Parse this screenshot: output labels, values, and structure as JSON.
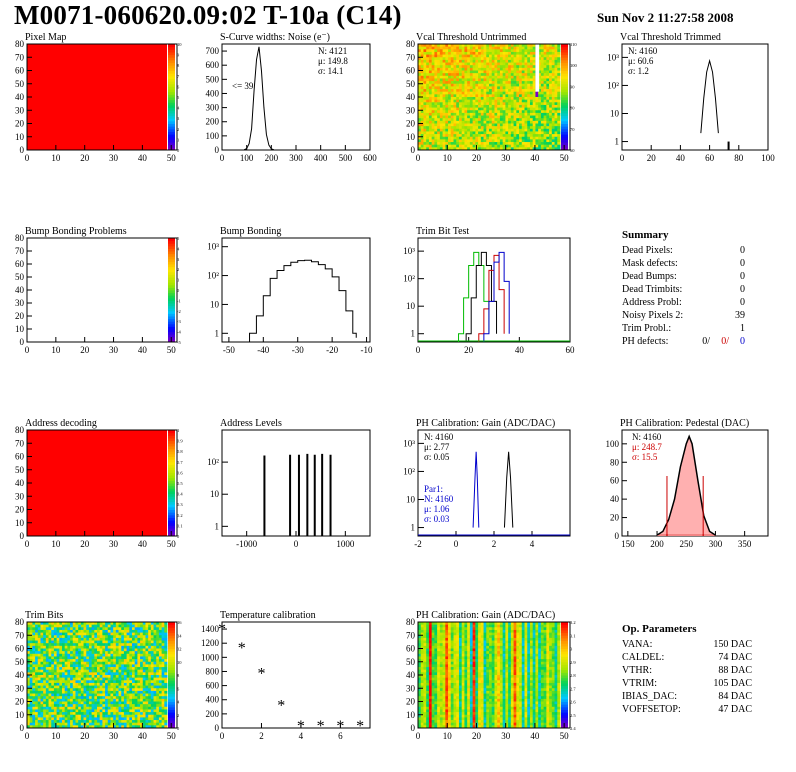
{
  "header": {
    "title": "M0071-060620.09:02 T-10a (C14)",
    "datetime": "Sun Nov  2 11:27:58 2008"
  },
  "axis_ticks": {
    "map_x": [
      "0",
      "10",
      "20",
      "30",
      "40",
      "50"
    ],
    "map_y": [
      "0",
      "10",
      "20",
      "30",
      "40",
      "50",
      "60",
      "70",
      "80"
    ],
    "log3": [
      "1",
      "10",
      "10²",
      "10³"
    ],
    "log2": [
      "1",
      "10",
      "10²"
    ],
    "scurve_x": [
      "0",
      "100",
      "200",
      "300",
      "400",
      "500",
      "600"
    ],
    "scurve_y": [
      "0",
      "100",
      "200",
      "300",
      "400",
      "500",
      "600",
      "700"
    ],
    "trimmed_x": [
      "0",
      "20",
      "40",
      "60",
      "80",
      "100"
    ],
    "bump_x": [
      "-50",
      "-40",
      "-30",
      "-20",
      "-10"
    ],
    "trimbit_x": [
      "0",
      "20",
      "40",
      "60"
    ],
    "addr_x": [
      "-1000",
      "0",
      "1000"
    ],
    "gain_x": [
      "-2",
      "0",
      "2",
      "4"
    ],
    "ped_x": [
      "150",
      "200",
      "250",
      "300",
      "350"
    ],
    "ped_y": [
      "0",
      "20",
      "40",
      "60",
      "80",
      "100"
    ],
    "temp_x": [
      "0",
      "2",
      "4",
      "6"
    ],
    "temp_y": [
      "0",
      "200",
      "400",
      "600",
      "800",
      "1000",
      "1200",
      "1400"
    ],
    "pixmap_z": [
      "0",
      "1",
      "2",
      "3",
      "4",
      "5",
      "6",
      "7",
      "8",
      "9",
      "10"
    ],
    "vcal_z": [
      "60",
      "70",
      "80",
      "90",
      "100",
      "110"
    ],
    "bump_z": [
      "-5",
      "-4",
      "-3",
      "-2",
      "-1",
      "0",
      "1",
      "2",
      "3",
      "4",
      "5"
    ],
    "addr_z": [
      "0",
      "0.1",
      "0.2",
      "0.3",
      "0.4",
      "0.5",
      "0.6",
      "0.7",
      "0.8",
      "0.9",
      "1"
    ],
    "trim_z": [
      "0",
      "2",
      "4",
      "6",
      "8",
      "10",
      "12",
      "14",
      "16"
    ],
    "gainmap_z": [
      "2.4",
      "2.5",
      "2.6",
      "2.7",
      "2.8",
      "2.9",
      "3",
      "3.1",
      "3.2"
    ]
  },
  "summary": {
    "title": "Summary",
    "rows": [
      {
        "label": "Dead Pixels:",
        "value": "0"
      },
      {
        "label": "Mask defects:",
        "value": "0"
      },
      {
        "label": "Dead Bumps:",
        "value": "0"
      },
      {
        "label": "Dead Trimbits:",
        "value": "0"
      },
      {
        "label": "Address Probl:",
        "value": "0"
      },
      {
        "label": "Noisy Pixels 2:",
        "value": "39"
      },
      {
        "label": "Trim Probl.:",
        "value": "1"
      }
    ],
    "ph_label": "PH defects:",
    "ph_values": [
      "0/",
      "0/",
      "0"
    ],
    "ph_colors": [
      "#000000",
      "#cc0000",
      "#0000cc"
    ]
  },
  "op_params": {
    "title": "Op. Parameters",
    "rows": [
      {
        "label": "VANA:",
        "value": "150 DAC"
      },
      {
        "label": "CALDEL:",
        "value": "74 DAC"
      },
      {
        "label": "VTHR:",
        "value": "88 DAC"
      },
      {
        "label": "VTRIM:",
        "value": "105 DAC"
      },
      {
        "label": "IBIAS_DAC:",
        "value": "84 DAC"
      },
      {
        "label": "VOFFSETOP:",
        "value": "47 DAC"
      }
    ]
  },
  "chart_data": [
    {
      "id": "pixel_map",
      "type": "heatmap",
      "title": "Pixel Map",
      "xlim": [
        0,
        52
      ],
      "ylim": [
        0,
        80
      ],
      "zlim": [
        0,
        10
      ],
      "uniform_value": 10,
      "uniform_color": "#ff0000"
    },
    {
      "id": "scurve",
      "type": "line",
      "title": "S-Curve widths: Noise (e⁻)",
      "xlim": [
        0,
        600
      ],
      "ylim": [
        0,
        750
      ],
      "x": [
        90,
        100,
        110,
        120,
        130,
        140,
        150,
        160,
        170,
        180,
        190,
        200,
        210
      ],
      "y": [
        2,
        10,
        45,
        150,
        420,
        640,
        730,
        560,
        300,
        110,
        35,
        8,
        2
      ],
      "stats": [
        "N: 4121",
        "μ: 149.8",
        "σ: 14.1"
      ],
      "annotation": "<= 39"
    },
    {
      "id": "vcal_untrimmed",
      "type": "heatmap",
      "title": "Vcal Threshold Untrimmed",
      "xlim": [
        0,
        52
      ],
      "ylim": [
        0,
        80
      ],
      "zlim": [
        55,
        115
      ]
    },
    {
      "id": "vcal_trimmed",
      "type": "line",
      "title": "Vcal Threshold Trimmed",
      "xlim": [
        0,
        100
      ],
      "log_y": true,
      "ylim": [
        0.5,
        3000
      ],
      "x": [
        54,
        56,
        58,
        60,
        62,
        64,
        66
      ],
      "y": [
        2,
        35,
        300,
        750,
        300,
        35,
        2
      ],
      "outlier": {
        "x": 73,
        "y": 1
      },
      "stats": [
        "N: 4160",
        "μ: 60.6",
        "σ:  1.2"
      ]
    },
    {
      "id": "bump_map",
      "type": "heatmap",
      "title": "Bump Bonding Problems",
      "xlim": [
        0,
        52
      ],
      "ylim": [
        0,
        80
      ],
      "zlim": [
        -5,
        5
      ],
      "empty": true
    },
    {
      "id": "bump_bonding",
      "type": "line",
      "title": "Bump Bonding",
      "log_y": true,
      "xlim": [
        -50,
        -10
      ],
      "ylim": [
        0.5,
        2000
      ],
      "x": [
        -44,
        -42,
        -40,
        -38,
        -36,
        -34,
        -32,
        -30,
        -28,
        -26,
        -24,
        -22,
        -20,
        -18,
        -16,
        -14,
        -13
      ],
      "y": [
        1,
        4,
        20,
        80,
        150,
        220,
        290,
        330,
        340,
        300,
        240,
        170,
        90,
        30,
        6,
        1,
        0.7
      ]
    },
    {
      "id": "trim_bit_test",
      "type": "line",
      "title": "Trim Bit Test",
      "log_y": true,
      "xlim": [
        0,
        60
      ],
      "ylim": [
        0.5,
        3000
      ],
      "series": [
        {
          "color": "#00bb00",
          "x": [
            16,
            18,
            20,
            22,
            24,
            26,
            28
          ],
          "y": [
            1,
            20,
            300,
            900,
            300,
            15,
            1
          ]
        },
        {
          "color": "#000000",
          "x": [
            19,
            21,
            23,
            25,
            27,
            29,
            31
          ],
          "y": [
            1,
            20,
            300,
            900,
            300,
            15,
            1
          ]
        },
        {
          "color": "#cc0000",
          "x": [
            24,
            26,
            28,
            30,
            32,
            34
          ],
          "y": [
            1,
            8,
            200,
            700,
            40,
            1
          ]
        },
        {
          "color": "#0000cc",
          "x": [
            26,
            28,
            30,
            32,
            34,
            36
          ],
          "y": [
            1,
            15,
            400,
            900,
            80,
            1
          ]
        }
      ]
    },
    {
      "id": "address_decoding",
      "type": "heatmap",
      "title": "Address decoding",
      "xlim": [
        0,
        52
      ],
      "ylim": [
        0,
        80
      ],
      "zlim": [
        0,
        1
      ],
      "uniform_value": 1,
      "uniform_color": "#ff0000"
    },
    {
      "id": "address_levels",
      "type": "bar",
      "title": "Address Levels",
      "log_y": true,
      "xlim": [
        -1500,
        1500
      ],
      "ylim": [
        0.5,
        1000
      ],
      "peaks_x": [
        -640,
        -120,
        60,
        230,
        380,
        530,
        700
      ],
      "peaks_y": [
        160,
        170,
        170,
        180,
        170,
        180,
        170
      ]
    },
    {
      "id": "ph_gain",
      "type": "line",
      "title": "PH Calibration: Gain (ADC/DAC)",
      "log_y": true,
      "xlim": [
        -2,
        6
      ],
      "ylim": [
        0.5,
        3000
      ],
      "series": [
        {
          "name": "Par1",
          "color": "#0000cc",
          "x": [
            0.9,
            1.0,
            1.06,
            1.12,
            1.2
          ],
          "y": [
            1,
            60,
            500,
            60,
            1
          ]
        },
        {
          "color": "#000000",
          "x": [
            2.55,
            2.67,
            2.77,
            2.87,
            2.99
          ],
          "y": [
            1,
            60,
            500,
            60,
            1
          ]
        }
      ],
      "stats": [
        "N: 4160",
        "μ: 2.77",
        "σ: 0.05"
      ],
      "stats2": [
        "Par1:",
        "N: 4160",
        "μ: 1.06",
        "σ: 0.03"
      ]
    },
    {
      "id": "ph_pedestal",
      "type": "line",
      "title": "PH Calibration: Pedestal (DAC)",
      "xlim": [
        140,
        390
      ],
      "ylim": [
        0,
        115
      ],
      "x": [
        200,
        210,
        220,
        230,
        240,
        250,
        255,
        260,
        270,
        280,
        290,
        300
      ],
      "y": [
        1,
        5,
        18,
        40,
        75,
        100,
        108,
        100,
        60,
        22,
        5,
        1
      ],
      "stats": [
        "N: 4160",
        "μ: 248.7",
        "σ: 15.5"
      ],
      "cut_lines": [
        217,
        279
      ]
    },
    {
      "id": "trim_bits",
      "type": "heatmap",
      "title": "Trim Bits",
      "xlim": [
        0,
        52
      ],
      "ylim": [
        0,
        80
      ],
      "zlim": [
        0,
        16
      ]
    },
    {
      "id": "temp_calib",
      "type": "scatter",
      "title": "Temperature calibration",
      "xlim": [
        0,
        7.5
      ],
      "ylim": [
        0,
        1500
      ],
      "x": [
        0,
        1,
        2,
        3,
        4,
        5,
        6,
        7
      ],
      "y": [
        1400,
        1130,
        770,
        320,
        30,
        25,
        30,
        30
      ]
    },
    {
      "id": "ph_gain_map",
      "type": "heatmap",
      "title": "PH Calibration: Gain (ADC/DAC)",
      "xlim": [
        0,
        52
      ],
      "ylim": [
        0,
        80
      ],
      "zlim": [
        2.4,
        3.2
      ]
    }
  ]
}
